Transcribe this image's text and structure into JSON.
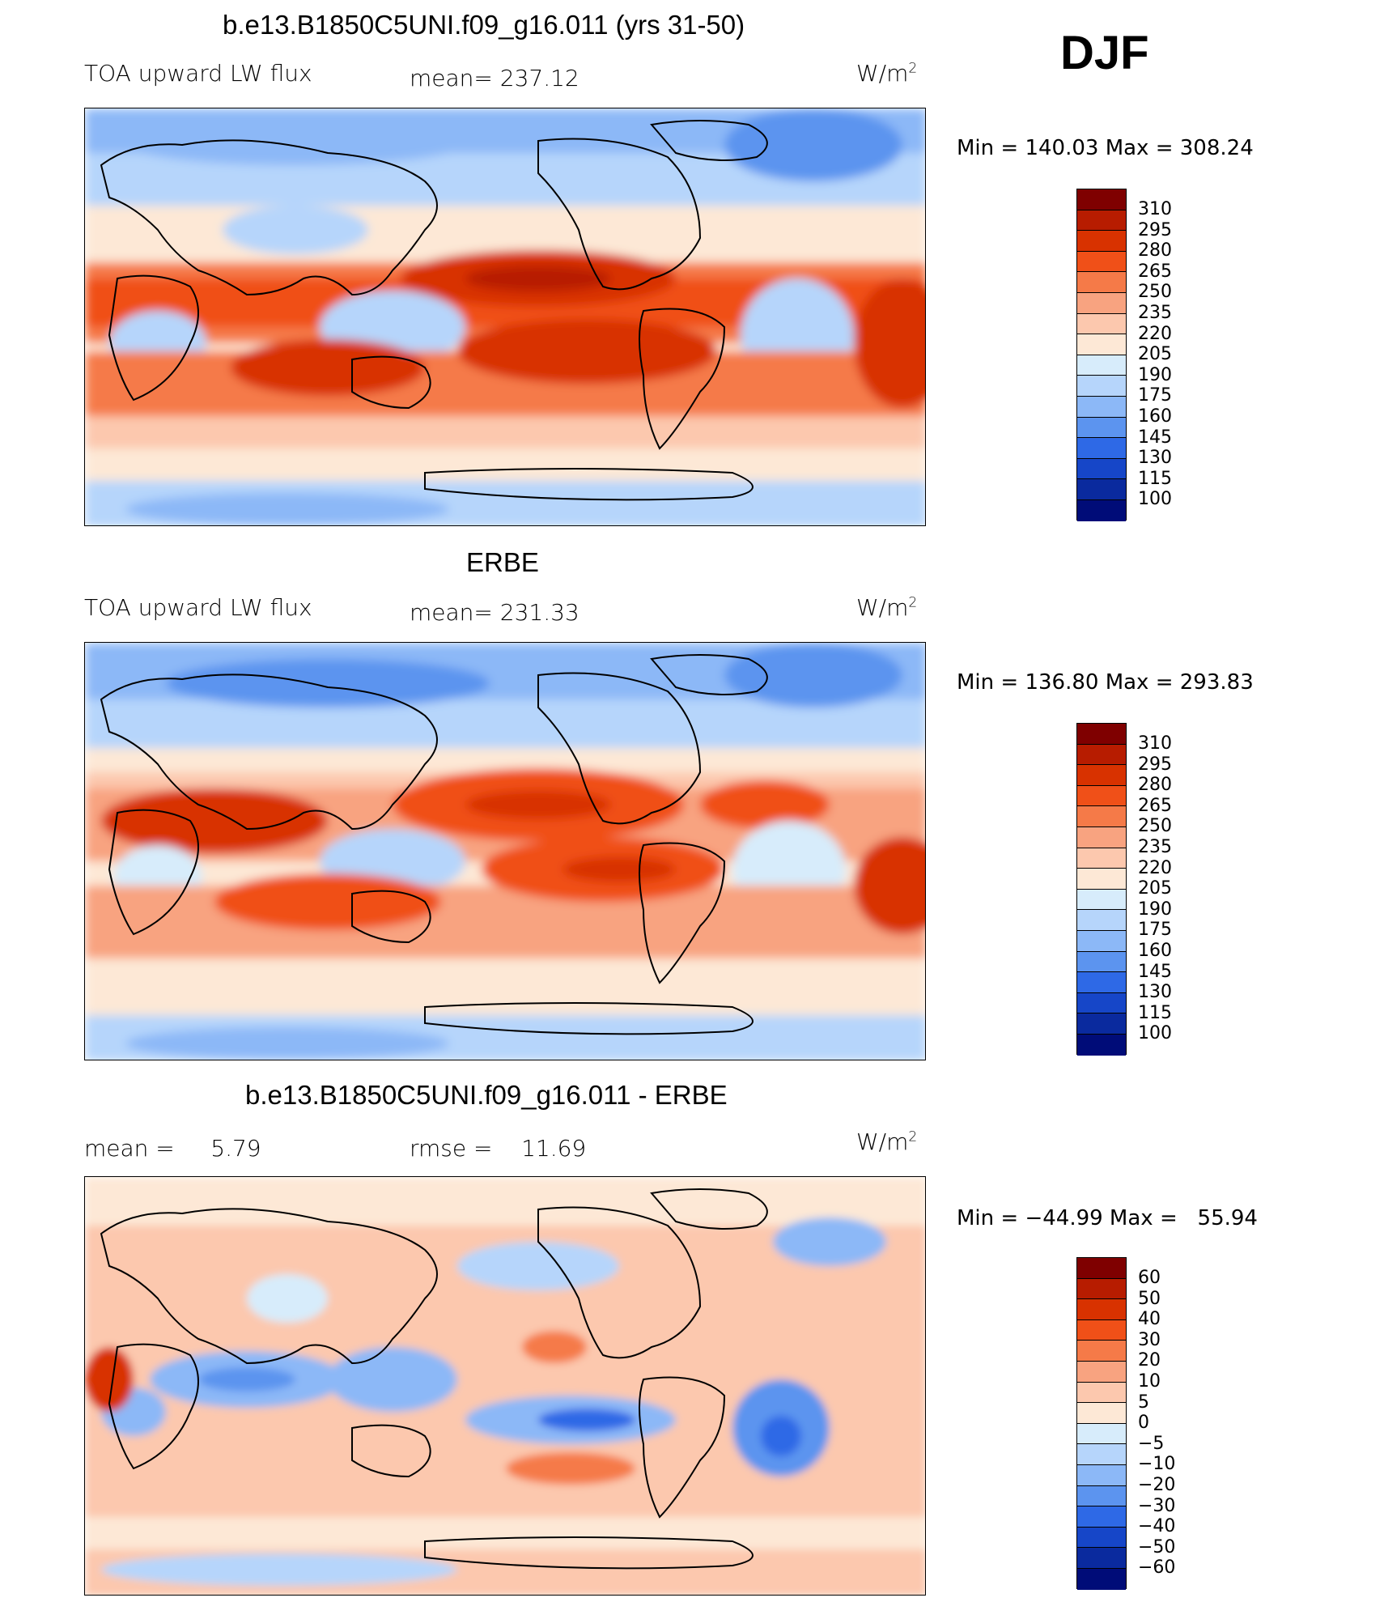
{
  "season": "DJF",
  "panels": [
    {
      "title": "b.e13.B1850C5UNI.f09_g16.011 (yrs 31-50)",
      "left": "TOA upward LW flux",
      "center": "mean= 237.12",
      "units": "W/m",
      "units_sup": "2",
      "minmax": "Min = 140.03 Max = 308.24",
      "colorbar": [
        "310",
        "295",
        "280",
        "265",
        "250",
        "235",
        "220",
        "205",
        "190",
        "175",
        "160",
        "145",
        "130",
        "115",
        "100"
      ],
      "palette": [
        "#7f0000",
        "#b71c00",
        "#d83200",
        "#f05018",
        "#f57a48",
        "#f8a380",
        "#fcc8ae",
        "#fde8d6",
        "#d7ecfb",
        "#b6d5fb",
        "#8cb8f7",
        "#5c94ef",
        "#2e69e6",
        "#1646c8",
        "#0a2a9e",
        "#000c78"
      ]
    },
    {
      "title": "ERBE",
      "left": "TOA upward LW flux",
      "center": "mean= 231.33",
      "units": "W/m",
      "units_sup": "2",
      "minmax": "Min = 136.80 Max = 293.83",
      "colorbar": [
        "310",
        "295",
        "280",
        "265",
        "250",
        "235",
        "220",
        "205",
        "190",
        "175",
        "160",
        "145",
        "130",
        "115",
        "100"
      ],
      "palette": [
        "#7f0000",
        "#b71c00",
        "#d83200",
        "#f05018",
        "#f57a48",
        "#f8a380",
        "#fcc8ae",
        "#fde8d6",
        "#d7ecfb",
        "#b6d5fb",
        "#8cb8f7",
        "#5c94ef",
        "#2e69e6",
        "#1646c8",
        "#0a2a9e",
        "#000c78"
      ]
    },
    {
      "title": "b.e13.B1850C5UNI.f09_g16.011 - ERBE",
      "left": "mean =     5.79",
      "center": "rmse =    11.69",
      "units": "W/m",
      "units_sup": "2",
      "minmax": "Min = −44.99 Max =   55.94",
      "colorbar": [
        "60",
        "50",
        "40",
        "30",
        "20",
        "10",
        "5",
        "0",
        "−5",
        "−10",
        "−20",
        "−30",
        "−40",
        "−50",
        "−60"
      ],
      "palette": [
        "#7f0000",
        "#b71c00",
        "#d83200",
        "#f05018",
        "#f57a48",
        "#f8a380",
        "#fcc8ae",
        "#fde8d6",
        "#d7ecfb",
        "#b6d5fb",
        "#8cb8f7",
        "#5c94ef",
        "#2e69e6",
        "#1646c8",
        "#0a2a9e",
        "#000c78"
      ]
    }
  ]
}
